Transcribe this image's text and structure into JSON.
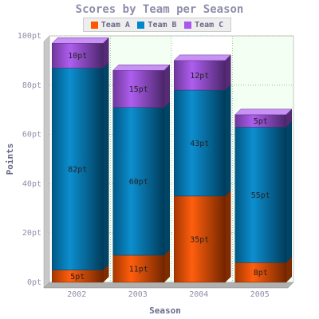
{
  "chart_data": {
    "type": "bar",
    "stacked": true,
    "title": "Scores by Team per Season",
    "xlabel": "Season",
    "ylabel": "Points",
    "categories": [
      "2002",
      "2003",
      "2004",
      "2005"
    ],
    "series": [
      {
        "name": "Team A",
        "values": [
          5,
          11,
          35,
          8
        ],
        "labels": [
          "5pt",
          "11pt",
          "35pt",
          "8pt"
        ],
        "color": "#ff5500"
      },
      {
        "name": "Team B",
        "values": [
          82,
          60,
          43,
          55
        ],
        "labels": [
          "82pt",
          "60pt",
          "43pt",
          "55pt"
        ],
        "color": "#0088cc"
      },
      {
        "name": "Team C",
        "values": [
          10,
          15,
          12,
          5
        ],
        "labels": [
          "10pt",
          "15pt",
          "12pt",
          "5pt"
        ],
        "color": "#aa55ee"
      }
    ],
    "ylim": [
      0,
      100
    ],
    "yticks": [
      "0pt",
      "20pt",
      "40pt",
      "60pt",
      "80pt",
      "100pt"
    ],
    "grid": true,
    "legend_position": "top"
  }
}
